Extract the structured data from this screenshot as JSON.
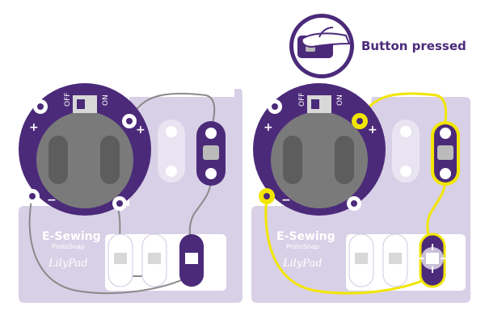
{
  "callout": {
    "label": "Button pressed",
    "icon": "finger-press-icon"
  },
  "boards": [
    {
      "id": "unpressed",
      "brand_line1": "E-Sewing",
      "brand_line2": "ProtoSnap",
      "logo_text": "LilyPad",
      "switch_off": "OFF",
      "switch_on": "ON",
      "plus": "+",
      "minus": "−",
      "circuit_active": false
    },
    {
      "id": "pressed",
      "brand_line1": "E-Sewing",
      "brand_line2": "ProtoSnap",
      "logo_text": "LilyPad",
      "switch_off": "OFF",
      "switch_on": "ON",
      "plus": "+",
      "minus": "−",
      "circuit_active": true
    }
  ],
  "colors": {
    "board": "#d8d0e6",
    "board_light": "#ffffff",
    "lilypad_purple": "#4b2a7a",
    "battery_grey": "#7a7a7a",
    "thread_yellow": "#f2e600",
    "thread_grey": "#8a8a8a",
    "led_white": "#e9e4f1"
  }
}
